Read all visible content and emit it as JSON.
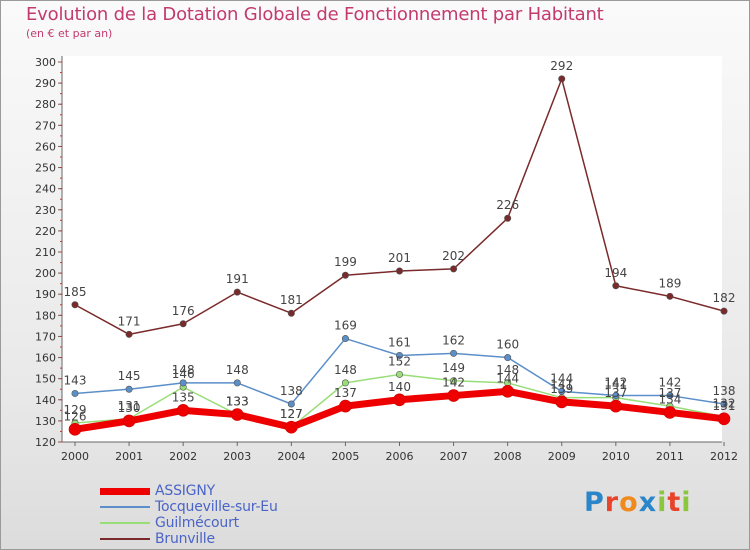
{
  "chart_data": {
    "type": "line",
    "title": "Evolution de la Dotation Globale de Fonctionnement par Habitant",
    "subtitle": "(en € et par an)",
    "xlabel": "",
    "ylabel": "",
    "x": [
      "2000",
      "2001",
      "2002",
      "2003",
      "2004",
      "2005",
      "2006",
      "2007",
      "2008",
      "2009",
      "2010",
      "2011",
      "2012"
    ],
    "ylim": [
      120,
      300
    ],
    "yticks": [
      120,
      130,
      140,
      150,
      160,
      170,
      180,
      190,
      200,
      210,
      220,
      230,
      240,
      250,
      260,
      270,
      280,
      290,
      300
    ],
    "grid": false,
    "legend_position": "bottom-left",
    "series": [
      {
        "name": "Brunville",
        "color": "#7a2a2a",
        "width": 1.5,
        "values": [
          185,
          171,
          176,
          191,
          181,
          199,
          201,
          202,
          226,
          292,
          194,
          189,
          182
        ]
      },
      {
        "name": "Guilmécourt",
        "color": "#99dd77",
        "width": 1.5,
        "values": [
          129,
          131,
          146,
          133,
          127,
          148,
          152,
          149,
          148,
          141,
          141,
          137,
          132
        ]
      },
      {
        "name": "Tocqueville-sur-Eu",
        "color": "#5b8fc9",
        "width": 1.5,
        "values": [
          143,
          145,
          148,
          148,
          138,
          169,
          161,
          162,
          160,
          144,
          142,
          142,
          138
        ]
      },
      {
        "name": "ASSIGNY",
        "color": "#ee0000",
        "width": 7,
        "values": [
          126,
          130,
          135,
          133,
          127,
          137,
          140,
          142,
          144,
          139,
          137,
          134,
          131
        ]
      }
    ],
    "legend": [
      {
        "name": "ASSIGNY",
        "color": "#ee0000",
        "width": 7
      },
      {
        "name": "Tocqueville-sur-Eu",
        "color": "#5b8fc9",
        "width": 2
      },
      {
        "name": "Guilmécourt",
        "color": "#99dd77",
        "width": 2
      },
      {
        "name": "Brunville",
        "color": "#7a2a2a",
        "width": 2
      }
    ]
  },
  "brand": {
    "letters": [
      "P",
      "r",
      "o",
      "x",
      "i",
      "t",
      "i"
    ],
    "colors": [
      "#2b86c9",
      "#e8432b",
      "#f08a1c",
      "#2b86c9",
      "#8cc63f",
      "#e8432b",
      "#8cc63f"
    ]
  }
}
